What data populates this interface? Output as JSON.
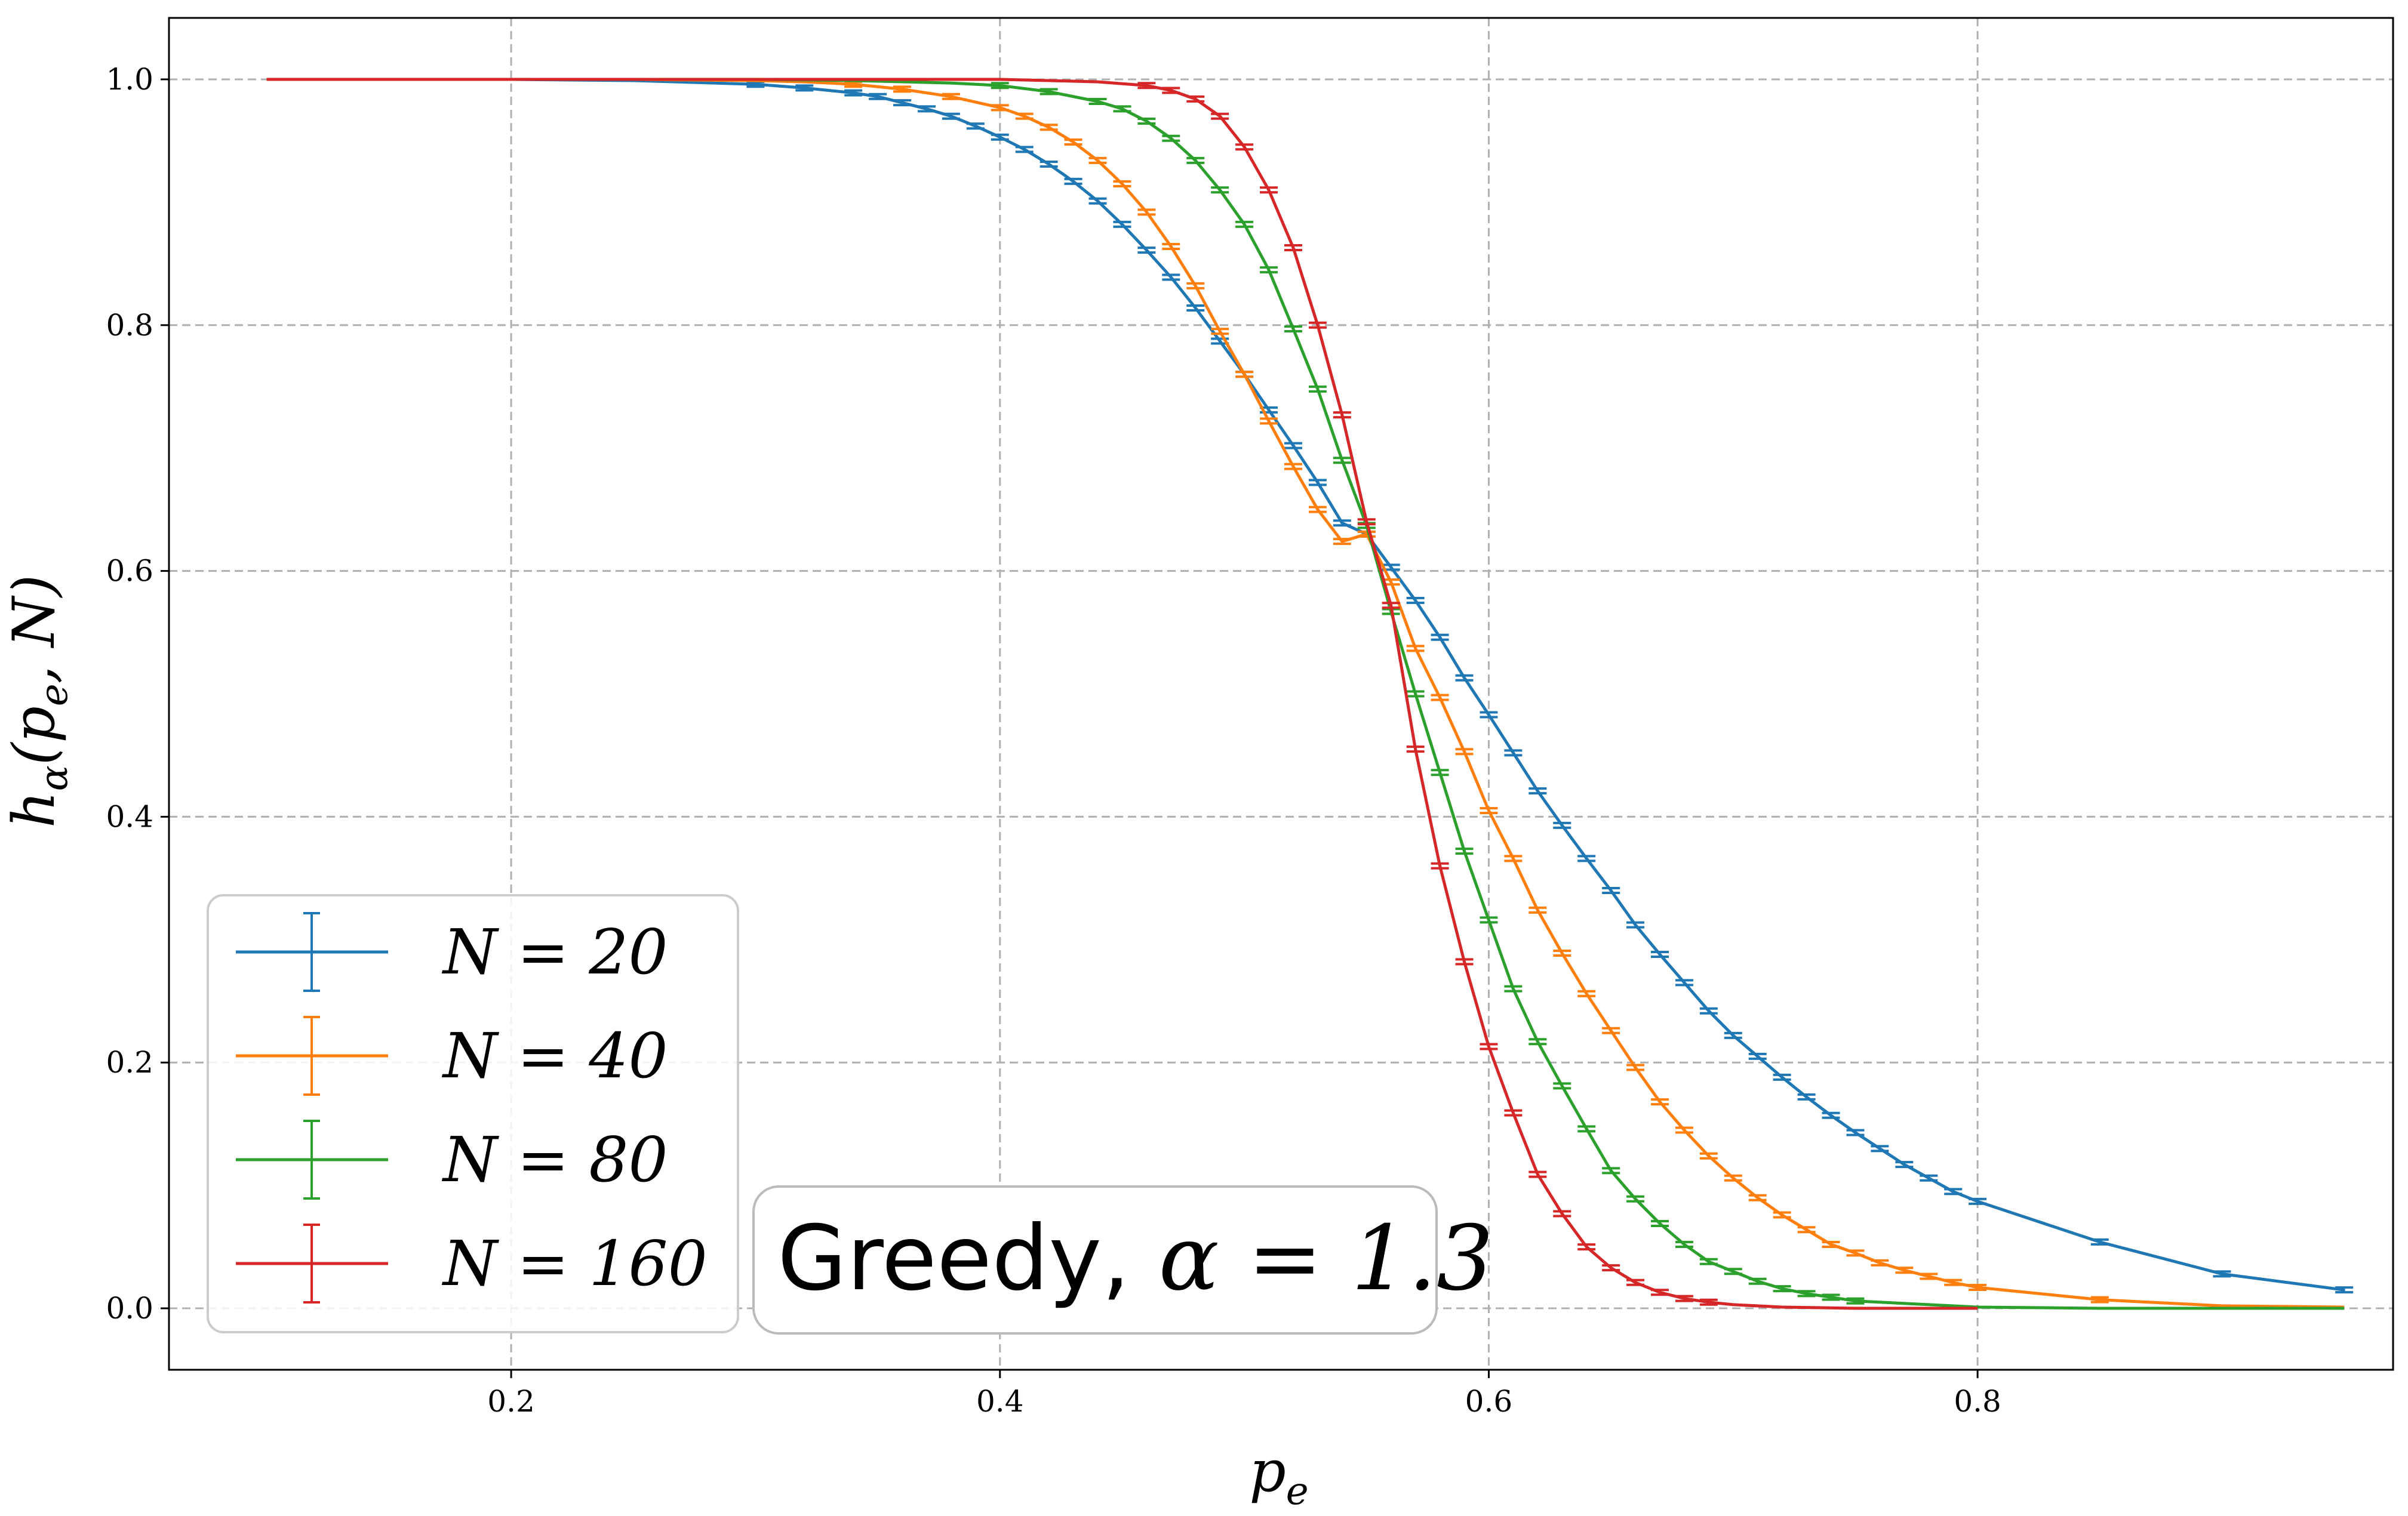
{
  "chart_data": {
    "type": "line",
    "title": "",
    "xlabel": "p_e",
    "ylabel": "h_α(p_e, N)",
    "xlim": [
      0.06,
      0.97
    ],
    "ylim": [
      -0.05,
      1.05
    ],
    "xticks": [
      0.2,
      0.4,
      0.6,
      0.8
    ],
    "yticks": [
      0.0,
      0.2,
      0.4,
      0.6,
      0.8,
      1.0
    ],
    "xtick_labels": [
      "0.2",
      "0.4",
      "0.6",
      "0.8"
    ],
    "ytick_labels": [
      "0.0",
      "0.2",
      "0.4",
      "0.6",
      "0.8",
      "1.0"
    ],
    "grid": true,
    "legend_position": "lower-left",
    "error_bars": true,
    "annotation": {
      "text": "Greedy, ",
      "math": "α = 1.3"
    },
    "series": [
      {
        "name": "N = 20",
        "color": "#1f77b4",
        "x": [
          0.1,
          0.2,
          0.25,
          0.3,
          0.32,
          0.34,
          0.35,
          0.36,
          0.37,
          0.38,
          0.39,
          0.4,
          0.41,
          0.42,
          0.43,
          0.44,
          0.45,
          0.46,
          0.47,
          0.48,
          0.49,
          0.5,
          0.51,
          0.52,
          0.53,
          0.54,
          0.55,
          0.56,
          0.57,
          0.58,
          0.59,
          0.6,
          0.61,
          0.62,
          0.63,
          0.64,
          0.65,
          0.66,
          0.67,
          0.68,
          0.69,
          0.7,
          0.71,
          0.72,
          0.73,
          0.74,
          0.75,
          0.76,
          0.77,
          0.78,
          0.79,
          0.8,
          0.85,
          0.9,
          0.95
        ],
        "y": [
          1.0,
          1.0,
          0.999,
          0.996,
          0.993,
          0.989,
          0.986,
          0.981,
          0.976,
          0.97,
          0.962,
          0.953,
          0.943,
          0.931,
          0.917,
          0.901,
          0.882,
          0.861,
          0.839,
          0.814,
          0.787,
          0.76,
          0.731,
          0.702,
          0.672,
          0.639,
          0.63,
          0.603,
          0.576,
          0.546,
          0.513,
          0.483,
          0.452,
          0.421,
          0.393,
          0.366,
          0.34,
          0.312,
          0.288,
          0.265,
          0.242,
          0.222,
          0.205,
          0.188,
          0.172,
          0.157,
          0.143,
          0.13,
          0.117,
          0.106,
          0.095,
          0.087,
          0.054,
          0.028,
          0.015
        ]
      },
      {
        "name": "N = 40",
        "color": "#ff7f0e",
        "x": [
          0.1,
          0.2,
          0.25,
          0.3,
          0.32,
          0.34,
          0.36,
          0.38,
          0.4,
          0.41,
          0.42,
          0.43,
          0.44,
          0.45,
          0.46,
          0.47,
          0.48,
          0.49,
          0.5,
          0.51,
          0.52,
          0.53,
          0.54,
          0.55,
          0.56,
          0.57,
          0.58,
          0.59,
          0.6,
          0.61,
          0.62,
          0.63,
          0.64,
          0.65,
          0.66,
          0.67,
          0.68,
          0.69,
          0.7,
          0.71,
          0.72,
          0.73,
          0.74,
          0.75,
          0.76,
          0.77,
          0.78,
          0.79,
          0.8,
          0.85,
          0.9,
          0.95
        ],
        "y": [
          1.0,
          1.0,
          1.0,
          0.999,
          0.998,
          0.996,
          0.992,
          0.986,
          0.977,
          0.97,
          0.961,
          0.949,
          0.934,
          0.915,
          0.892,
          0.864,
          0.832,
          0.795,
          0.76,
          0.722,
          0.685,
          0.65,
          0.624,
          0.63,
          0.591,
          0.537,
          0.497,
          0.453,
          0.405,
          0.366,
          0.324,
          0.289,
          0.256,
          0.226,
          0.196,
          0.168,
          0.145,
          0.124,
          0.106,
          0.09,
          0.076,
          0.064,
          0.052,
          0.045,
          0.037,
          0.031,
          0.026,
          0.021,
          0.017,
          0.007,
          0.002,
          0.001
        ]
      },
      {
        "name": "N = 80",
        "color": "#2ca02c",
        "x": [
          0.1,
          0.2,
          0.25,
          0.3,
          0.34,
          0.38,
          0.4,
          0.42,
          0.44,
          0.45,
          0.46,
          0.47,
          0.48,
          0.49,
          0.5,
          0.51,
          0.52,
          0.53,
          0.54,
          0.55,
          0.56,
          0.57,
          0.58,
          0.59,
          0.6,
          0.61,
          0.62,
          0.63,
          0.64,
          0.65,
          0.66,
          0.67,
          0.68,
          0.69,
          0.7,
          0.71,
          0.72,
          0.73,
          0.74,
          0.75,
          0.8,
          0.85,
          0.9,
          0.95
        ],
        "y": [
          1.0,
          1.0,
          1.0,
          1.0,
          0.999,
          0.997,
          0.995,
          0.99,
          0.982,
          0.976,
          0.966,
          0.952,
          0.934,
          0.91,
          0.882,
          0.845,
          0.797,
          0.748,
          0.69,
          0.637,
          0.567,
          0.5,
          0.436,
          0.372,
          0.316,
          0.26,
          0.217,
          0.181,
          0.146,
          0.112,
          0.089,
          0.069,
          0.052,
          0.038,
          0.03,
          0.022,
          0.016,
          0.012,
          0.009,
          0.006,
          0.001,
          0.0,
          0.0,
          0.0
        ]
      },
      {
        "name": "N = 160",
        "color": "#d62728",
        "x": [
          0.1,
          0.2,
          0.25,
          0.3,
          0.35,
          0.4,
          0.42,
          0.44,
          0.46,
          0.47,
          0.48,
          0.49,
          0.5,
          0.51,
          0.52,
          0.53,
          0.54,
          0.55,
          0.56,
          0.57,
          0.58,
          0.59,
          0.6,
          0.61,
          0.62,
          0.63,
          0.64,
          0.65,
          0.66,
          0.67,
          0.68,
          0.69,
          0.7,
          0.72,
          0.75,
          0.8
        ],
        "y": [
          1.0,
          1.0,
          1.0,
          1.0,
          1.0,
          1.0,
          0.999,
          0.998,
          0.995,
          0.991,
          0.984,
          0.97,
          0.945,
          0.91,
          0.863,
          0.8,
          0.727,
          0.64,
          0.572,
          0.455,
          0.36,
          0.282,
          0.213,
          0.159,
          0.109,
          0.077,
          0.05,
          0.033,
          0.021,
          0.013,
          0.008,
          0.005,
          0.003,
          0.001,
          0.0,
          0.0
        ]
      }
    ]
  }
}
